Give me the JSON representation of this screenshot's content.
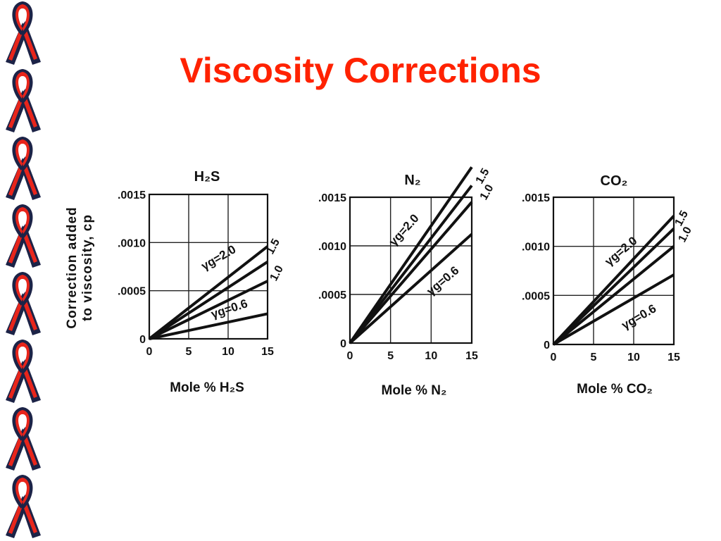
{
  "slide": {
    "title": "Viscosity Corrections",
    "colors": {
      "title": "#ff2200",
      "ribbon_red": "#e8251b",
      "ribbon_navy": "#1c2347",
      "lines": "#111111"
    }
  },
  "ribbon_count": 8,
  "shared_ylabel_line1": "Correction added",
  "shared_ylabel_line2": "to viscosity, cp",
  "chart_data": [
    {
      "type": "line",
      "title": "H₂S",
      "xlabel": "Mole % H₂S",
      "ylabel": "Correction added to viscosity, cp",
      "xlim": [
        0,
        15
      ],
      "ylim": [
        0,
        0.0015
      ],
      "xticks": [
        "0",
        "5",
        "10",
        "15"
      ],
      "yticks": [
        ".0015",
        ".0010",
        ".0005",
        "0"
      ],
      "grid": true,
      "series": [
        {
          "name": "2.0",
          "x": [
            0,
            15
          ],
          "y": [
            0,
            0.00096
          ]
        },
        {
          "name": "1.5",
          "x": [
            0,
            15
          ],
          "y": [
            0,
            0.0008
          ]
        },
        {
          "name": "1.0",
          "x": [
            0,
            15
          ],
          "y": [
            0,
            0.0006
          ]
        },
        {
          "name": "0.6",
          "x": [
            0,
            15
          ],
          "y": [
            0,
            0.00026
          ]
        }
      ],
      "annotations": [
        {
          "label": "γg=2.0",
          "series": "2.0"
        },
        {
          "label": "1.5",
          "series": "1.5"
        },
        {
          "label": "1.0",
          "series": "1.0"
        },
        {
          "label": "γg=0.6",
          "series": "0.6"
        }
      ]
    },
    {
      "type": "line",
      "title": "N₂",
      "xlabel": "Mole % N₂",
      "ylabel": "",
      "xlim": [
        0,
        15
      ],
      "ylim": [
        0,
        0.0015
      ],
      "xticks": [
        "0",
        "5",
        "10",
        "15"
      ],
      "yticks": [
        ".0015",
        ".0010",
        ".0005",
        "0"
      ],
      "grid": true,
      "series": [
        {
          "name": "2.0",
          "x": [
            0,
            15
          ],
          "y": [
            0,
            0.00181
          ]
        },
        {
          "name": "1.5",
          "x": [
            0,
            15
          ],
          "y": [
            0,
            0.00162
          ]
        },
        {
          "name": "1.0",
          "x": [
            0,
            15
          ],
          "y": [
            0,
            0.00145
          ]
        },
        {
          "name": "0.6",
          "x": [
            0,
            15
          ],
          "y": [
            0,
            0.00112
          ]
        }
      ],
      "annotations": [
        {
          "label": "γg=2.0",
          "series": "2.0"
        },
        {
          "label": "1.5",
          "series": "1.5"
        },
        {
          "label": "1.0",
          "series": "1.0"
        },
        {
          "label": "γg=0.6",
          "series": "0.6"
        }
      ]
    },
    {
      "type": "line",
      "title": "CO₂",
      "xlabel": "Mole % CO₂",
      "ylabel": "",
      "xlim": [
        0,
        15
      ],
      "ylim": [
        0,
        0.0015
      ],
      "xticks": [
        "0",
        "5",
        "10",
        "15"
      ],
      "yticks": [
        ".0015",
        ".0010",
        ".0005",
        "0"
      ],
      "grid": true,
      "series": [
        {
          "name": "2.0",
          "x": [
            0,
            15
          ],
          "y": [
            0,
            0.00131
          ]
        },
        {
          "name": "1.5",
          "x": [
            0,
            15
          ],
          "y": [
            0,
            0.00118
          ]
        },
        {
          "name": "1.0",
          "x": [
            0,
            15
          ],
          "y": [
            0,
            0.001
          ]
        },
        {
          "name": "0.6",
          "x": [
            0,
            15
          ],
          "y": [
            0,
            0.00071
          ]
        }
      ],
      "annotations": [
        {
          "label": "γg=2.0",
          "series": "2.0"
        },
        {
          "label": "1.5",
          "series": "1.5"
        },
        {
          "label": "1.0",
          "series": "1.0"
        },
        {
          "label": "γg=0.6",
          "series": "0.6"
        }
      ]
    }
  ]
}
